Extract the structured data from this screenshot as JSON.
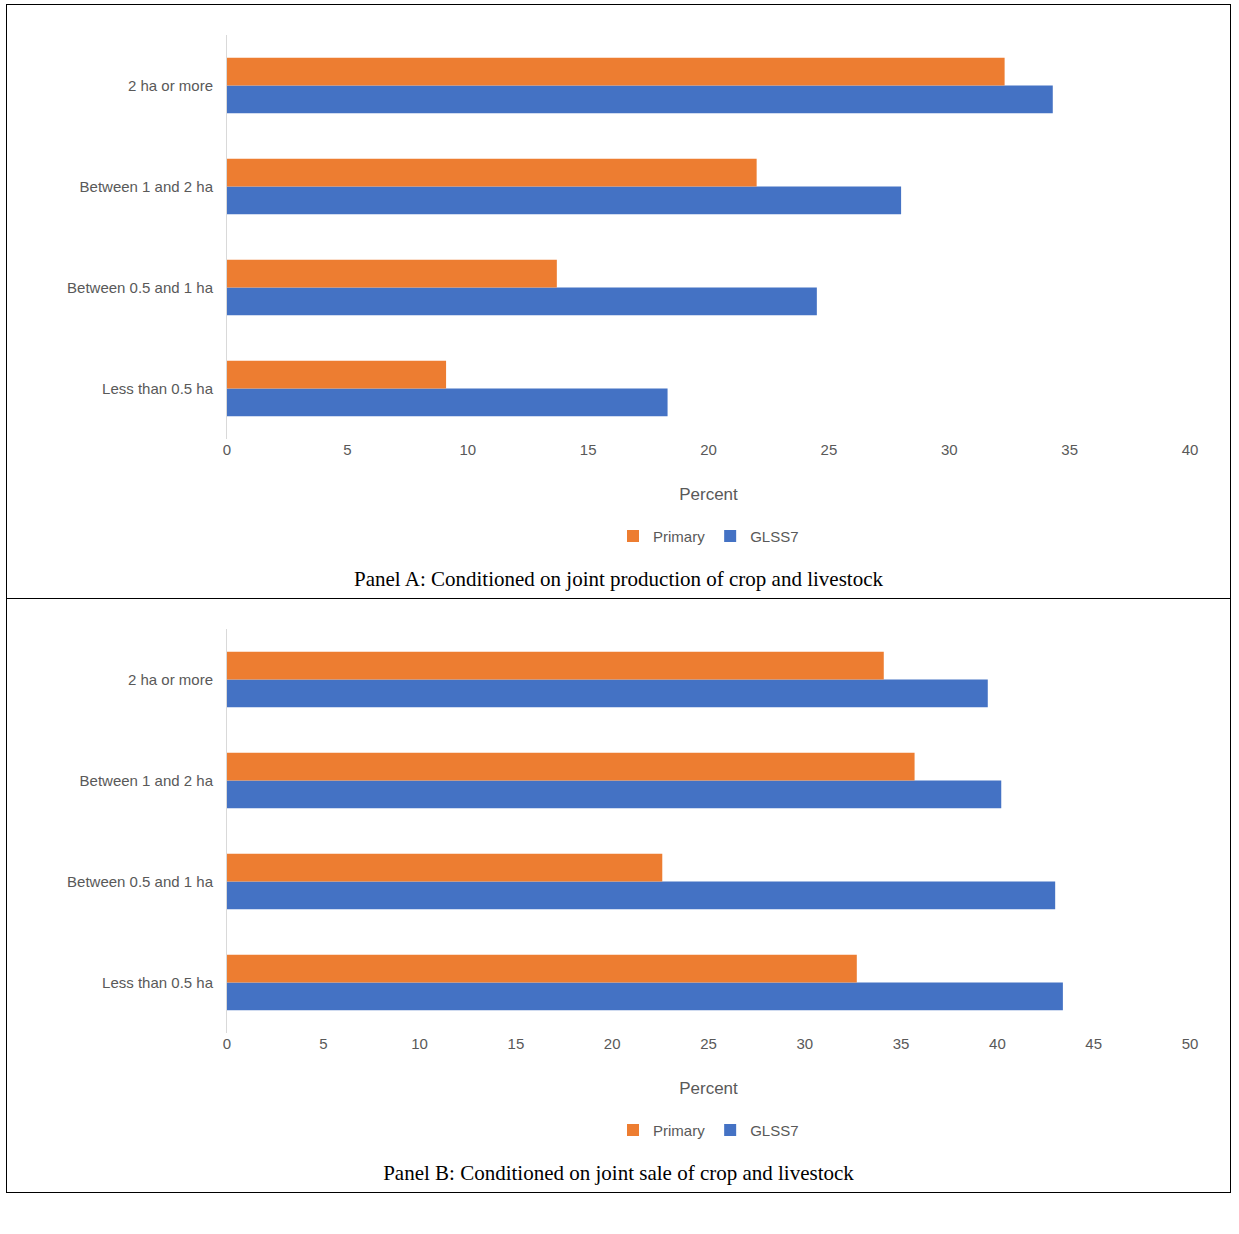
{
  "chart_data": [
    {
      "type": "bar",
      "orientation": "horizontal",
      "title": "Panel A: Conditioned on joint production of crop and livestock",
      "x_label": "Percent",
      "categories": [
        "Less than 0.5 ha",
        "Between 0.5 and 1 ha",
        "Between 1 and 2 ha",
        "2 ha or more"
      ],
      "series": [
        {
          "name": "GLSS7",
          "color": "#4472c4",
          "values": [
            18.3,
            24.5,
            28.0,
            34.3
          ]
        },
        {
          "name": "Primary",
          "color": "#ed7d31",
          "values": [
            9.1,
            13.7,
            22.0,
            32.3
          ]
        }
      ],
      "xlim": [
        0,
        40
      ],
      "xticks": [
        0,
        5,
        10,
        15,
        20,
        25,
        30,
        35,
        40
      ],
      "grid": false,
      "legend": "bottom"
    },
    {
      "type": "bar",
      "orientation": "horizontal",
      "title": "Panel B: Conditioned on joint sale of crop and livestock",
      "x_label": "Percent",
      "categories": [
        "Less than 0.5 ha",
        "Between 0.5 and 1 ha",
        "Between 1 and 2 ha",
        "2 ha or more"
      ],
      "series": [
        {
          "name": "GLSS7",
          "color": "#4472c4",
          "values": [
            43.4,
            43.0,
            40.2,
            39.5
          ]
        },
        {
          "name": "Primary",
          "color": "#ed7d31",
          "values": [
            32.7,
            22.6,
            35.7,
            34.1
          ]
        }
      ],
      "xlim": [
        0,
        50
      ],
      "xticks": [
        0,
        5,
        10,
        15,
        20,
        25,
        30,
        35,
        40,
        45,
        50
      ],
      "grid": false,
      "legend": "bottom"
    }
  ]
}
